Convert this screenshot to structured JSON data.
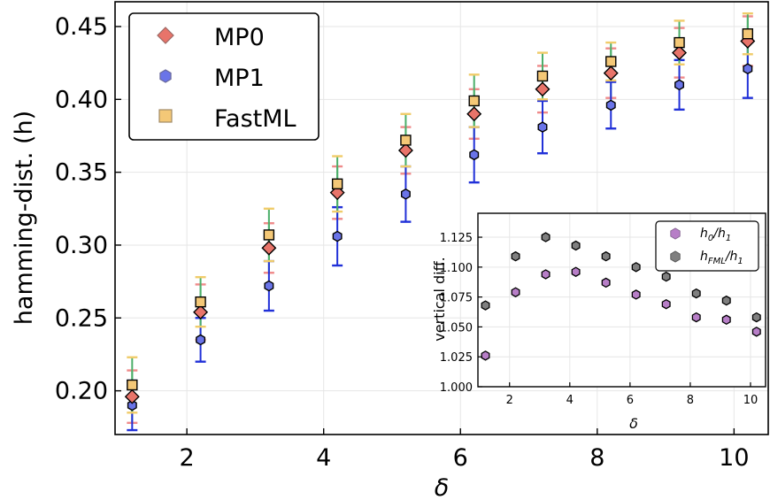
{
  "colors": {
    "MP0": "#e8746a",
    "MP1": "#6a74e8",
    "FastML": "#f4c877",
    "ratio0": "#b77ec7",
    "ratioFML": "#7f7f7f",
    "err_MP0": "#ef8a8a",
    "err_MP1": "#2030d8",
    "err_FastML": "#f0cc6a",
    "err_green": "#4caf6a",
    "grid": "#e6e6e6"
  },
  "chart_data": [
    {
      "type": "scatter",
      "xlabel": "δ",
      "ylabel": "hamming-dist. (h)",
      "xlim": [
        0.95,
        10.5
      ],
      "ylim": [
        0.17,
        0.467
      ],
      "xticks": [
        "2",
        "4",
        "6",
        "8",
        "10"
      ],
      "xtick_values": [
        2,
        4,
        6,
        8,
        10
      ],
      "yticks": [
        "0.20",
        "0.25",
        "0.30",
        "0.35",
        "0.40",
        "0.45"
      ],
      "ytick_values": [
        0.2,
        0.25,
        0.3,
        0.35,
        0.4,
        0.45
      ],
      "grid": true,
      "legend_position": "top-left",
      "series": [
        {
          "name": "MP0",
          "marker": "diamond",
          "x": [
            1.2,
            2.2,
            3.2,
            4.2,
            5.2,
            6.2,
            7.2,
            8.2,
            9.2,
            10.2
          ],
          "y": [
            0.196,
            0.254,
            0.298,
            0.336,
            0.365,
            0.39,
            0.407,
            0.418,
            0.432,
            0.44
          ],
          "err": [
            0.018,
            0.019,
            0.017,
            0.018,
            0.016,
            0.017,
            0.016,
            0.017,
            0.017,
            0.017
          ]
        },
        {
          "name": "MP1",
          "marker": "hexagon",
          "x": [
            1.2,
            2.2,
            3.2,
            4.2,
            5.2,
            6.2,
            7.2,
            8.2,
            9.2,
            10.2
          ],
          "y": [
            0.19,
            0.235,
            0.272,
            0.306,
            0.335,
            0.362,
            0.381,
            0.396,
            0.41,
            0.421
          ],
          "err": [
            0.017,
            0.015,
            0.017,
            0.02,
            0.019,
            0.019,
            0.018,
            0.016,
            0.017,
            0.02
          ]
        },
        {
          "name": "FastML",
          "marker": "square",
          "x": [
            1.2,
            2.2,
            3.2,
            4.2,
            5.2,
            6.2,
            7.2,
            8.2,
            9.2,
            10.2
          ],
          "y": [
            0.204,
            0.261,
            0.307,
            0.342,
            0.372,
            0.399,
            0.416,
            0.426,
            0.439,
            0.445
          ],
          "err": [
            0.019,
            0.017,
            0.018,
            0.019,
            0.018,
            0.018,
            0.016,
            0.013,
            0.015,
            0.014
          ]
        }
      ]
    },
    {
      "type": "scatter",
      "xlabel": "δ",
      "ylabel": "vertical diff.",
      "xlim": [
        0.95,
        10.5
      ],
      "ylim": [
        1.0,
        1.145
      ],
      "xticks": [
        "2",
        "4",
        "6",
        "8",
        "10"
      ],
      "xtick_values": [
        2,
        4,
        6,
        8,
        10
      ],
      "yticks": [
        "1.000",
        "1.025",
        "1.050",
        "1.075",
        "1.100",
        "1.125"
      ],
      "ytick_values": [
        1.0,
        1.025,
        1.05,
        1.075,
        1.1,
        1.125
      ],
      "grid": true,
      "legend_position": "top-right",
      "series": [
        {
          "name": "h0/h1",
          "legend_main": "h",
          "legend_sub": "0",
          "legend_main2": "/h",
          "legend_sub2": "1",
          "x": [
            1.2,
            2.2,
            3.2,
            4.2,
            5.2,
            6.2,
            7.2,
            8.2,
            9.2,
            10.2
          ],
          "y": [
            1.026,
            1.079,
            1.094,
            1.096,
            1.087,
            1.077,
            1.069,
            1.058,
            1.056,
            1.046
          ]
        },
        {
          "name": "hFML/h1",
          "legend_main": "h",
          "legend_sub": "FML",
          "legend_main2": "/h",
          "legend_sub2": "1",
          "x": [
            1.2,
            2.2,
            3.2,
            4.2,
            5.2,
            6.2,
            7.2,
            8.2,
            9.2,
            10.2
          ],
          "y": [
            1.068,
            1.109,
            1.125,
            1.118,
            1.109,
            1.1,
            1.092,
            1.078,
            1.072,
            1.058
          ]
        }
      ]
    }
  ]
}
